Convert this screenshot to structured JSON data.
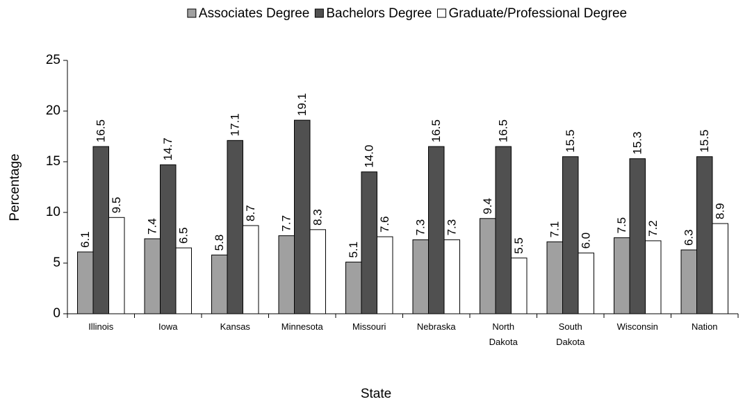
{
  "chart_data": {
    "type": "bar",
    "x_label": "State",
    "y_label": "Percentage",
    "categories": [
      "Illinois",
      "Iowa",
      "Kansas",
      "Minnesota",
      "Missouri",
      "Nebraska",
      "North Dakota",
      "South Dakota",
      "Wisconsin",
      "Nation"
    ],
    "series": [
      {
        "name": "Associates Degree",
        "color": "#a0a0a0",
        "values": [
          6.1,
          7.4,
          5.8,
          7.7,
          5.1,
          7.3,
          9.4,
          7.1,
          7.5,
          6.3
        ],
        "value_labels": [
          "6.1",
          "7.4",
          "5.8",
          "7.7",
          "5.1",
          "7.3",
          "9.4",
          "7.1",
          "7.5",
          "6.3"
        ]
      },
      {
        "name": "Bachelors Degree",
        "color": "#505050",
        "values": [
          16.5,
          14.7,
          17.1,
          19.1,
          14,
          16.5,
          16.5,
          15.5,
          15.3,
          15.5
        ],
        "value_labels": [
          "16.5",
          "14.7",
          "17.1",
          "19.1",
          "14.0",
          "16.5",
          "16.5",
          "15.5",
          "15.3",
          "15.5"
        ]
      },
      {
        "name": "Graduate/Professional Degree",
        "color": "#ffffff",
        "values": [
          9.5,
          6.5,
          8.7,
          8.3,
          7.6,
          7.3,
          5.5,
          6,
          7.2,
          8.9
        ],
        "value_labels": [
          "9.5",
          "6.5",
          "8.7",
          "8.3",
          "7.6",
          "7.3",
          "5.5",
          "6.0",
          "7.2",
          "8.9"
        ]
      }
    ],
    "ylim": [
      0,
      25
    ],
    "yticks": [
      0,
      5,
      10,
      15,
      20,
      25
    ],
    "grid": false,
    "legend": "top"
  }
}
